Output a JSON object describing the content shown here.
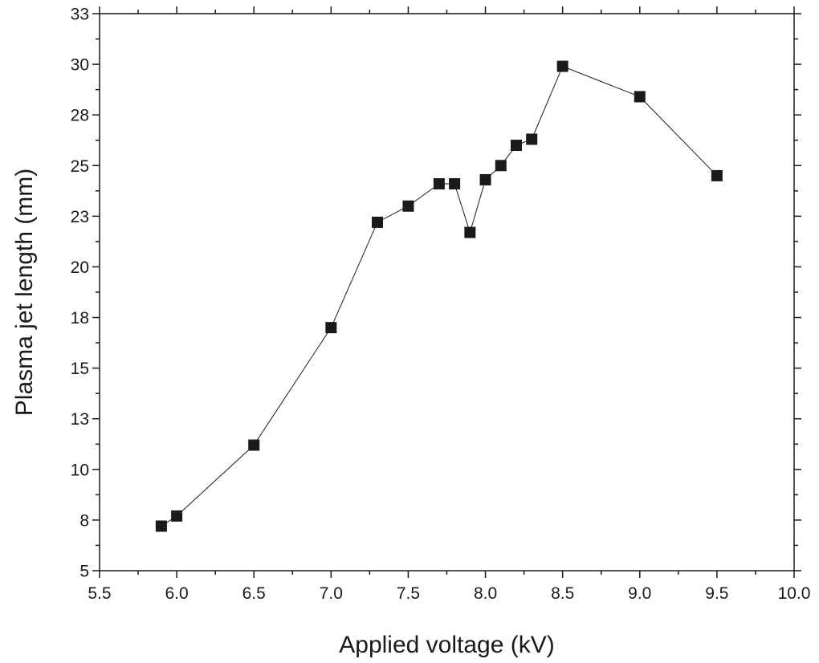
{
  "chart_data": {
    "type": "line",
    "title": "",
    "xlabel": "Applied voltage (kV)",
    "ylabel": "Plasma jet length (mm)",
    "xlim": [
      5.5,
      10.0
    ],
    "ylim": [
      5,
      32.5
    ],
    "x_ticks": [
      5.5,
      6.0,
      6.5,
      7.0,
      7.5,
      8.0,
      8.5,
      9.0,
      9.5,
      10.0
    ],
    "x_tick_labels": [
      "5.5",
      "6.0",
      "6.5",
      "7.0",
      "7.5",
      "8.0",
      "8.5",
      "9.0",
      "9.5",
      "10.0"
    ],
    "y_ticks": [
      5,
      7.5,
      10,
      12.5,
      15,
      17.5,
      20,
      22.5,
      25,
      27.5,
      30,
      32.5
    ],
    "y_tick_labels": [
      "5",
      "8",
      "10",
      "13",
      "15",
      "18",
      "20",
      "23",
      "25",
      "28",
      "30",
      "33"
    ],
    "grid": false,
    "legend": "none",
    "marker": "square",
    "color": "#1a1a1a",
    "series": [
      {
        "x": [
          5.9,
          6.0,
          6.5,
          7.0,
          7.3,
          7.5,
          7.7,
          7.8,
          7.9,
          8.0,
          8.1,
          8.2,
          8.3,
          8.5,
          9.0,
          9.5
        ],
        "y": [
          7.2,
          7.7,
          11.2,
          17.0,
          22.2,
          23.0,
          24.1,
          24.1,
          21.7,
          24.3,
          25.0,
          26.0,
          26.3,
          29.9,
          28.4,
          24.5
        ]
      }
    ]
  }
}
